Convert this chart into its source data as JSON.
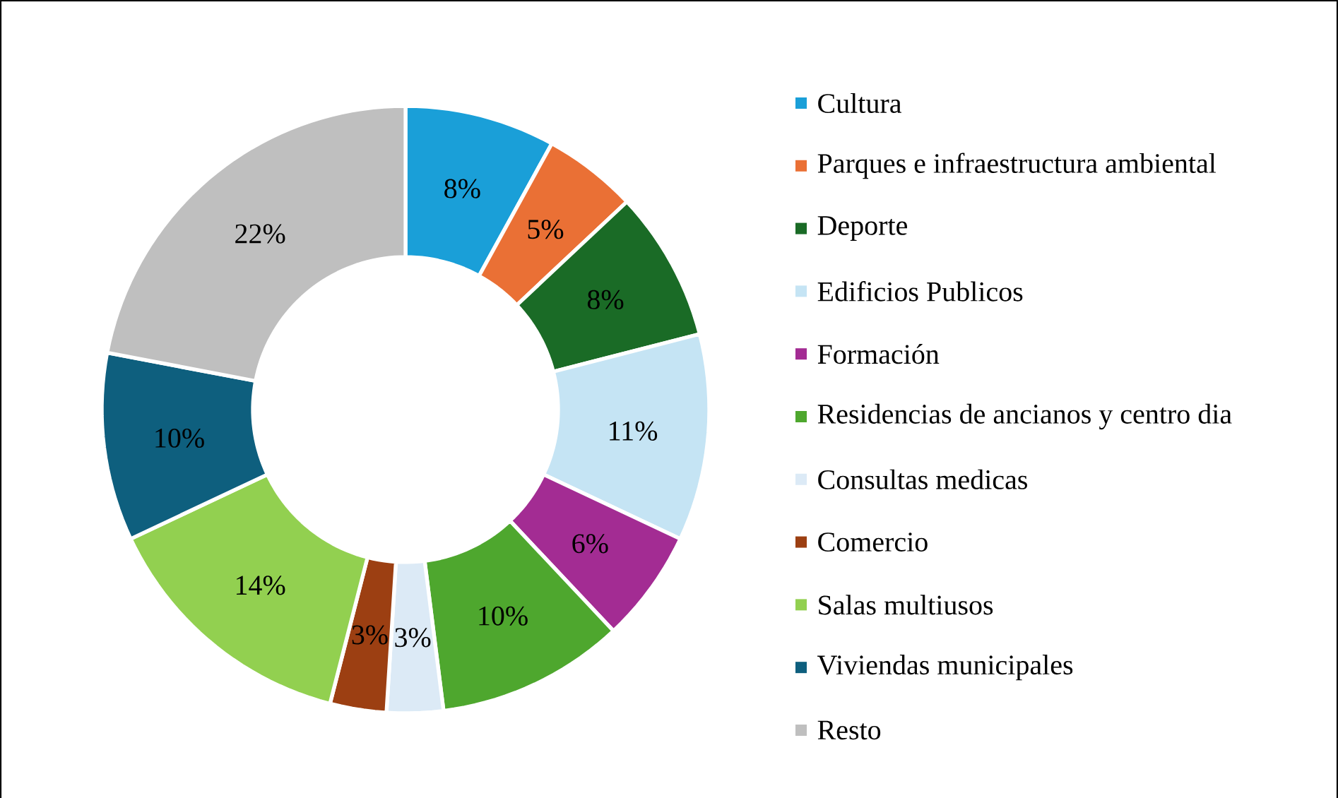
{
  "chart_data": {
    "type": "donut",
    "categories": [
      "Cultura",
      "Parques e infraestructura ambiental",
      "Deporte",
      "Edificios Publicos",
      "Formación",
      "Residencias de ancianos y centro dia",
      "Consultas medicas",
      "Comercio",
      "Salas multiusos",
      "Viviendas municipales",
      "Resto"
    ],
    "values": [
      8,
      5,
      8,
      11,
      6,
      10,
      3,
      3,
      14,
      10,
      22
    ],
    "value_labels": [
      "8%",
      "5%",
      "8%",
      "11%",
      "6%",
      "10%",
      "3%",
      "3%",
      "14%",
      "10%",
      "22%"
    ],
    "colors": [
      "#1a9fd8",
      "#ea7035",
      "#1a6b26",
      "#c5e4f4",
      "#a32c93",
      "#4ea72e",
      "#dceaf6",
      "#9c3f12",
      "#92d050",
      "#0e5f7e",
      "#bfbfbf"
    ],
    "legend": "right"
  }
}
